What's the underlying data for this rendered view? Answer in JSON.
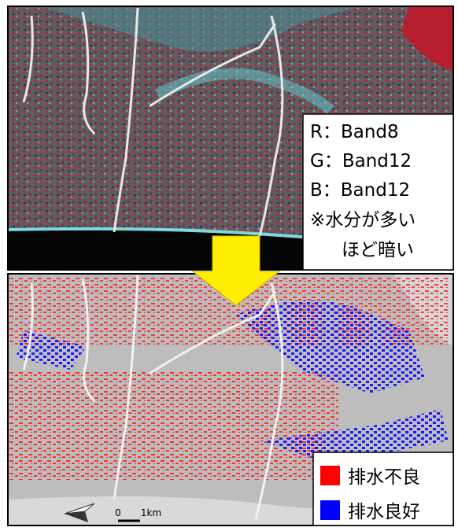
{
  "top_panel": {
    "legend": {
      "lines": [
        "R：Band8",
        "G：Band12",
        "B：Band12",
        "※水分が多い",
        "ほど暗い"
      ]
    }
  },
  "bottom_panel": {
    "legend": {
      "items": [
        "排水不良",
        "排水良好"
      ]
    },
    "scale_bar": {
      "start": "0",
      "end": "1km"
    }
  }
}
